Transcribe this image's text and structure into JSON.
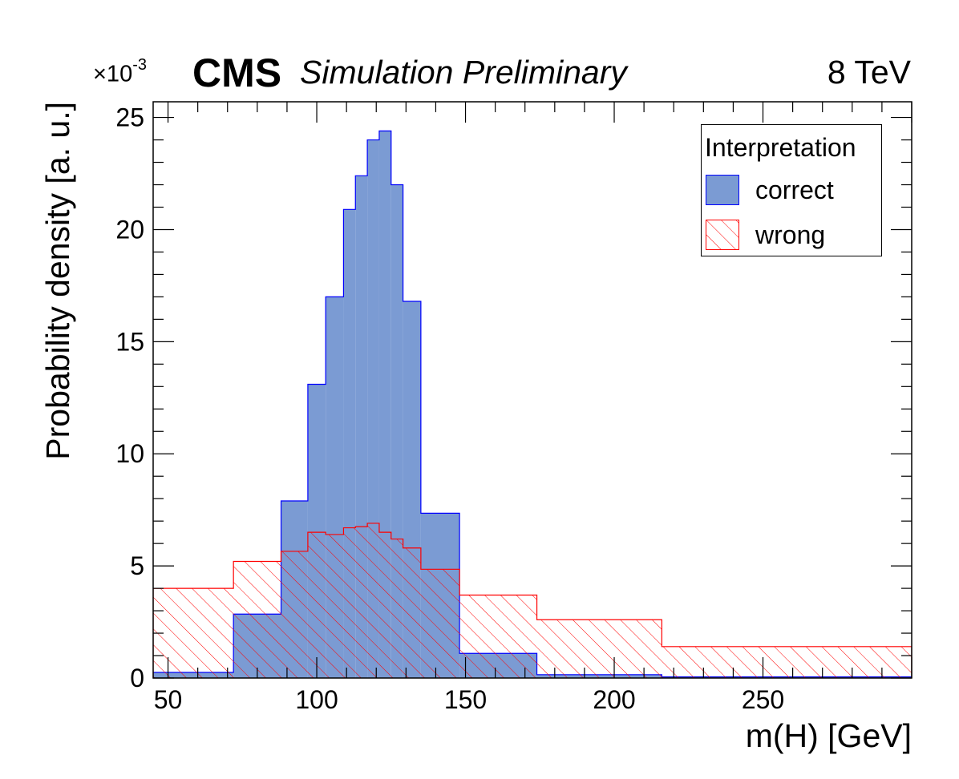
{
  "header": {
    "experiment": "CMS",
    "subtitle": "Simulation Preliminary",
    "energy": "8 TeV",
    "y_multiplier": "×10",
    "y_multiplier_exp": "-3"
  },
  "legend": {
    "title": "Interpretation",
    "entries": [
      "correct",
      "wrong"
    ]
  },
  "colors": {
    "correct_fill": "#7b9bd3",
    "correct_line": "#0000ff",
    "wrong_line": "#ff0000",
    "axis": "#000000"
  },
  "chart_data": {
    "type": "histogram",
    "xlabel": "m(H) [GeV]",
    "ylabel": "Probability density [a. u.]",
    "xlim": [
      45,
      300
    ],
    "ylim": [
      0,
      25.7
    ],
    "x_ticks": [
      50,
      100,
      150,
      200,
      250
    ],
    "y_ticks": [
      0,
      5,
      10,
      15,
      20,
      25
    ],
    "series": [
      {
        "name": "correct",
        "style": "filled",
        "bin_edges": [
          45,
          72,
          88,
          97,
          103,
          109,
          113,
          117,
          121,
          125,
          129,
          135,
          148,
          174,
          216,
          300
        ],
        "values": [
          0.25,
          2.85,
          7.9,
          13.1,
          17.0,
          20.9,
          22.4,
          24.0,
          24.4,
          22.0,
          16.8,
          7.35,
          1.1,
          0.15,
          0.05
        ]
      },
      {
        "name": "wrong",
        "style": "hatched",
        "bin_edges": [
          45,
          72,
          88,
          97,
          103,
          109,
          113,
          117,
          121,
          125,
          129,
          135,
          148,
          174,
          216,
          300
        ],
        "values": [
          4.0,
          5.2,
          5.65,
          6.5,
          6.4,
          6.7,
          6.75,
          6.9,
          6.5,
          6.2,
          5.8,
          4.85,
          3.7,
          2.6,
          1.4
        ]
      }
    ]
  }
}
